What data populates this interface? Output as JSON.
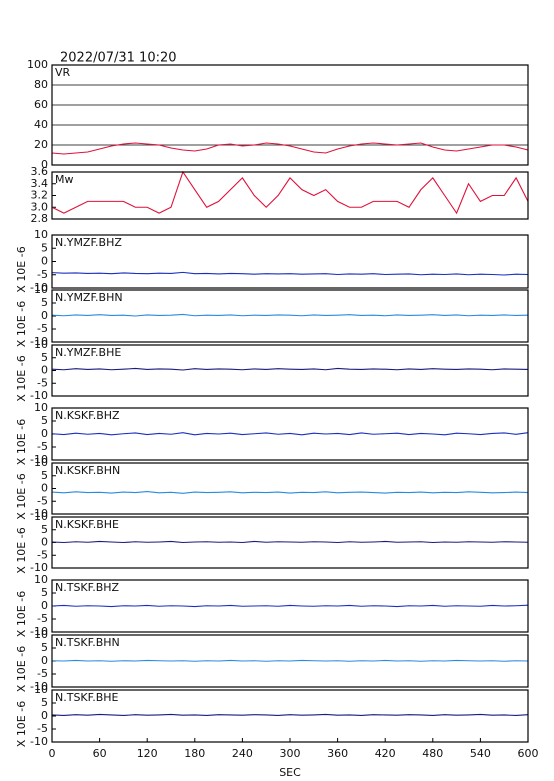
{
  "chart_data": {
    "type": "line",
    "title": "2022/07/31 10:20",
    "xlabel": "SEC",
    "x": [
      0,
      15,
      30,
      45,
      60,
      75,
      90,
      105,
      120,
      135,
      150,
      165,
      180,
      195,
      210,
      225,
      240,
      255,
      270,
      285,
      300,
      315,
      330,
      345,
      360,
      375,
      390,
      405,
      420,
      435,
      450,
      465,
      480,
      495,
      510,
      525,
      540,
      555,
      570,
      585,
      600
    ],
    "xlim": [
      0,
      600
    ],
    "xticks": [
      0,
      60,
      120,
      180,
      240,
      300,
      360,
      420,
      480,
      540,
      600
    ],
    "panels": [
      {
        "ylim": [
          0,
          100
        ],
        "yticks": [
          0,
          20,
          40,
          60,
          80,
          100
        ],
        "grid": true,
        "series": [
          {
            "name": "VR",
            "color": "#e0103a",
            "values": [
              12,
              11,
              12,
              13,
              16,
              19,
              21,
              22,
              21,
              20,
              17,
              15,
              14,
              16,
              20,
              21,
              19,
              20,
              22,
              21,
              19,
              16,
              13,
              12,
              16,
              19,
              21,
              22,
              21,
              20,
              21,
              22,
              18,
              15,
              14,
              16,
              18,
              20,
              20,
              18,
              15
            ]
          }
        ]
      },
      {
        "ylim": [
          2.8,
          3.6
        ],
        "yticks": [
          2.8,
          {
            "value": 3,
            "label": "3.0"
          },
          3.2,
          3.4,
          3.6
        ],
        "grid": false,
        "series": [
          {
            "name": "Mw",
            "color": "#e0103a",
            "values": [
              3.0,
              2.9,
              3.0,
              3.1,
              3.1,
              3.1,
              3.1,
              3.0,
              3.0,
              2.9,
              3.0,
              3.6,
              3.3,
              3.0,
              3.1,
              3.3,
              3.5,
              3.2,
              3.0,
              3.2,
              3.5,
              3.3,
              3.2,
              3.3,
              3.1,
              3.0,
              3.0,
              3.1,
              3.1,
              3.1,
              3.0,
              3.3,
              3.5,
              3.2,
              2.9,
              3.4,
              3.1,
              3.2,
              3.2,
              3.5,
              3.1
            ]
          }
        ]
      },
      {
        "ylim": [
          -10,
          10
        ],
        "yticks": [
          -10,
          -5,
          0,
          5,
          10
        ],
        "ylabel": "X 10E -6",
        "series": [
          {
            "name": "N.YMZF.BHZ",
            "color": "#1a2fc0",
            "values": [
              -4.2,
              -4.4,
              -4.3,
              -4.5,
              -4.4,
              -4.6,
              -4.3,
              -4.5,
              -4.6,
              -4.4,
              -4.5,
              -4.1,
              -4.6,
              -4.5,
              -4.7,
              -4.5,
              -4.6,
              -4.8,
              -4.6,
              -4.7,
              -4.6,
              -4.8,
              -4.7,
              -4.6,
              -4.9,
              -4.7,
              -4.8,
              -4.6,
              -4.9,
              -4.8,
              -4.7,
              -5.0,
              -4.8,
              -4.9,
              -4.7,
              -5.0,
              -4.8,
              -4.9,
              -5.1,
              -4.8,
              -4.9
            ]
          }
        ]
      },
      {
        "ylim": [
          -10,
          10
        ],
        "yticks": [
          -10,
          -5,
          0,
          5,
          10
        ],
        "ylabel": "X 10E -6",
        "series": [
          {
            "name": "N.YMZF.BHN",
            "color": "#2a8ae0",
            "values": [
              0.3,
              0.1,
              0.4,
              0.2,
              0.5,
              0.2,
              0.3,
              0.0,
              0.4,
              0.2,
              0.3,
              0.6,
              0.1,
              0.3,
              0.2,
              0.4,
              0.1,
              0.3,
              0.2,
              0.4,
              0.3,
              0.1,
              0.4,
              0.2,
              0.3,
              0.5,
              0.2,
              0.3,
              0.1,
              0.4,
              0.2,
              0.3,
              0.5,
              0.2,
              0.4,
              0.1,
              0.3,
              0.2,
              0.4,
              0.2,
              0.3
            ]
          }
        ]
      },
      {
        "ylim": [
          -10,
          10
        ],
        "yticks": [
          -10,
          -5,
          0,
          5,
          10
        ],
        "ylabel": "X 10E -6",
        "series": [
          {
            "name": "N.YMZF.BHE",
            "color": "#1a1a80",
            "values": [
              0.5,
              0.3,
              0.7,
              0.4,
              0.6,
              0.3,
              0.5,
              0.8,
              0.4,
              0.6,
              0.5,
              0.2,
              0.7,
              0.4,
              0.6,
              0.5,
              0.3,
              0.6,
              0.4,
              0.7,
              0.5,
              0.4,
              0.6,
              0.3,
              0.8,
              0.5,
              0.4,
              0.6,
              0.5,
              0.3,
              0.6,
              0.4,
              0.7,
              0.5,
              0.4,
              0.6,
              0.5,
              0.3,
              0.6,
              0.5,
              0.4
            ]
          }
        ]
      },
      {
        "ylim": [
          -10,
          10
        ],
        "yticks": [
          -10,
          -5,
          0,
          5,
          10
        ],
        "ylabel": "X 10E -6",
        "series": [
          {
            "name": "N.KSKF.BHZ",
            "color": "#1a2fc0",
            "values": [
              0.1,
              -0.2,
              0.3,
              -0.1,
              0.2,
              -0.3,
              0.1,
              0.4,
              -0.2,
              0.2,
              -0.1,
              0.5,
              -0.3,
              0.2,
              0.0,
              0.3,
              -0.2,
              0.1,
              0.4,
              -0.1,
              0.2,
              -0.3,
              0.3,
              0.0,
              0.2,
              -0.2,
              0.4,
              -0.1,
              0.1,
              0.3,
              -0.2,
              0.2,
              0.0,
              -0.3,
              0.3,
              0.1,
              -0.2,
              0.2,
              0.4,
              -0.1,
              0.5
            ]
          }
        ]
      },
      {
        "ylim": [
          -10,
          10
        ],
        "yticks": [
          -10,
          -5,
          0,
          5,
          10
        ],
        "ylabel": "X 10E -6",
        "series": [
          {
            "name": "N.KSKF.BHN",
            "color": "#2a8ae0",
            "values": [
              -1.4,
              -1.7,
              -1.3,
              -1.6,
              -1.5,
              -1.8,
              -1.4,
              -1.6,
              -1.2,
              -1.7,
              -1.5,
              -1.9,
              -1.4,
              -1.6,
              -1.5,
              -1.3,
              -1.7,
              -1.5,
              -1.6,
              -1.4,
              -1.8,
              -1.5,
              -1.6,
              -1.3,
              -1.7,
              -1.5,
              -1.4,
              -1.6,
              -1.8,
              -1.5,
              -1.6,
              -1.4,
              -1.7,
              -1.5,
              -1.6,
              -1.3,
              -1.5,
              -1.7,
              -1.6,
              -1.4,
              -1.6
            ]
          }
        ]
      },
      {
        "ylim": [
          -10,
          10
        ],
        "yticks": [
          -10,
          -5,
          0,
          5,
          10
        ],
        "ylabel": "X 10E -6",
        "series": [
          {
            "name": "N.KSKF.BHE",
            "color": "#1a1a80",
            "values": [
              0.2,
              0.0,
              0.3,
              0.1,
              0.4,
              0.2,
              0.0,
              0.3,
              0.1,
              0.2,
              0.4,
              0.0,
              0.2,
              0.3,
              0.1,
              0.2,
              0.0,
              0.4,
              0.1,
              0.3,
              0.2,
              0.1,
              0.3,
              0.2,
              0.0,
              0.3,
              0.1,
              0.2,
              0.4,
              0.1,
              0.2,
              0.3,
              0.0,
              0.2,
              0.1,
              0.3,
              0.2,
              0.1,
              0.3,
              0.2,
              0.1
            ]
          }
        ]
      },
      {
        "ylim": [
          -10,
          10
        ],
        "yticks": [
          -10,
          -5,
          0,
          5,
          10
        ],
        "ylabel": "X 10E -6",
        "series": [
          {
            "name": "N.TSKF.BHZ",
            "color": "#1a2fc0",
            "values": [
              0.0,
              0.2,
              -0.1,
              0.1,
              0.0,
              -0.2,
              0.1,
              0.0,
              0.2,
              -0.1,
              0.1,
              0.0,
              -0.2,
              0.1,
              0.0,
              0.2,
              -0.1,
              0.0,
              0.1,
              -0.1,
              0.2,
              0.0,
              -0.1,
              0.1,
              0.0,
              0.2,
              -0.1,
              0.1,
              0.0,
              -0.2,
              0.1,
              0.0,
              0.2,
              -0.1,
              0.1,
              0.0,
              -0.1,
              0.2,
              0.0,
              0.1,
              0.3
            ]
          }
        ]
      },
      {
        "ylim": [
          -10,
          10
        ],
        "yticks": [
          -10,
          -5,
          0,
          5,
          10
        ],
        "ylabel": "X 10E -6",
        "series": [
          {
            "name": "N.TSKF.BHN",
            "color": "#2a8ae0",
            "values": [
              0.1,
              0.0,
              0.2,
              0.0,
              0.1,
              -0.1,
              0.1,
              0.0,
              0.2,
              0.1,
              0.0,
              0.1,
              -0.1,
              0.1,
              0.0,
              0.2,
              0.0,
              0.1,
              -0.1,
              0.1,
              0.0,
              0.2,
              0.1,
              0.0,
              0.1,
              -0.1,
              0.1,
              0.0,
              0.2,
              0.0,
              0.1,
              -0.1,
              0.1,
              0.0,
              0.2,
              0.1,
              0.0,
              0.1,
              -0.1,
              0.1,
              0.0
            ]
          }
        ]
      },
      {
        "ylim": [
          -10,
          10
        ],
        "yticks": [
          -10,
          -5,
          0,
          5,
          10
        ],
        "ylabel": "X 10E -6",
        "series": [
          {
            "name": "N.TSKF.BHE",
            "color": "#1a1a80",
            "values": [
              0.4,
              0.2,
              0.5,
              0.3,
              0.6,
              0.4,
              0.2,
              0.5,
              0.3,
              0.4,
              0.6,
              0.3,
              0.4,
              0.2,
              0.5,
              0.4,
              0.3,
              0.5,
              0.4,
              0.2,
              0.5,
              0.3,
              0.4,
              0.6,
              0.3,
              0.4,
              0.2,
              0.5,
              0.4,
              0.3,
              0.5,
              0.4,
              0.2,
              0.5,
              0.3,
              0.4,
              0.6,
              0.3,
              0.4,
              0.2,
              0.5
            ]
          }
        ]
      }
    ]
  }
}
